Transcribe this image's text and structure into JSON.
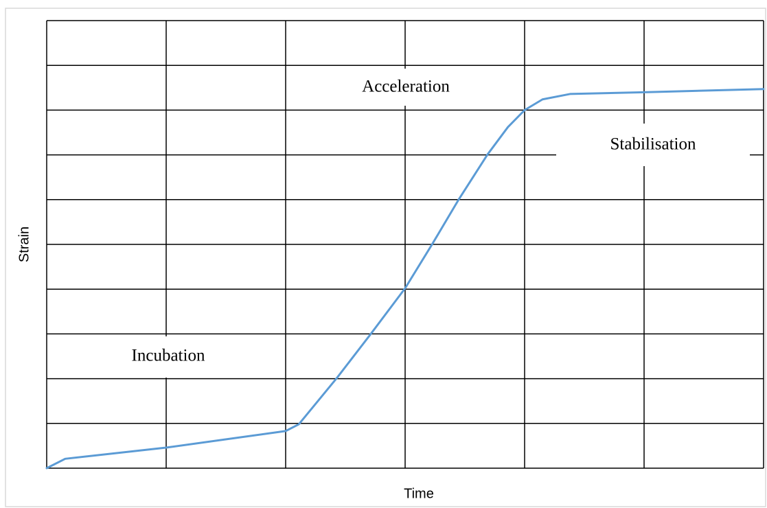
{
  "chart_data": {
    "type": "line",
    "x_label": "Time",
    "y_label": "Strain",
    "annotations": [
      "Acceleration",
      "Stabilisation",
      "Incubation"
    ],
    "x": [
      0,
      0.155,
      1,
      2,
      2.11,
      2.43,
      2.71,
      3,
      3.23,
      3.45,
      3.69,
      3.86,
      4,
      4.15,
      4.38,
      5,
      6
    ],
    "values": [
      0,
      0.21,
      0.46,
      0.83,
      0.98,
      2.02,
      2.99,
      4.02,
      5.02,
      6.01,
      7.01,
      7.62,
      8.0,
      8.24,
      8.36,
      8.4,
      8.47
    ],
    "color": "#5b9bd5",
    "xlim": [
      0,
      6
    ],
    "ylim": [
      0,
      10
    ],
    "xticks": [
      0,
      1,
      2,
      3,
      4,
      5,
      6
    ],
    "yticks": [
      0,
      1,
      2,
      3,
      4,
      5,
      6,
      7,
      8,
      9,
      10
    ],
    "grid": true
  }
}
